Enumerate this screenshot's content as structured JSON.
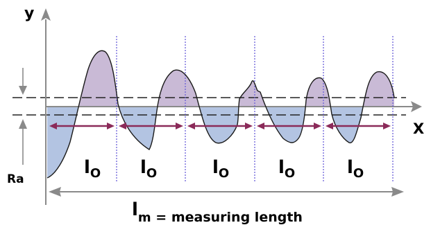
{
  "axes": {
    "y_label": "y",
    "x_label": "X"
  },
  "ra_label": "Ra",
  "sampling_length": {
    "letter": "l",
    "subscript": "O",
    "count": 5
  },
  "measuring_length": {
    "letter": "l",
    "subscript": "m",
    "text": " = measuring length"
  },
  "colors": {
    "above_mean_fill": "#c9bad6",
    "below_mean_fill": "#b3c4e2",
    "profile_stroke": "#1a1a1a",
    "axis_gray": "#8a8a8a",
    "divider_purple": "#6a5fd8",
    "interval_arrow": "#8b2a59",
    "mean_line": "#222222"
  }
}
